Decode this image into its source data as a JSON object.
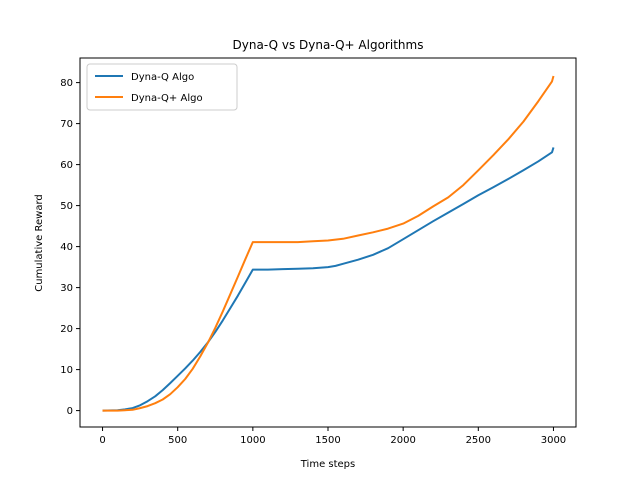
{
  "chart_data": {
    "type": "line",
    "title": "Dyna-Q vs Dyna-Q+ Algorithms",
    "xlabel": "Time steps",
    "ylabel": "Cumulative Reward",
    "xlim": [
      -150,
      3150
    ],
    "ylim": [
      -4,
      86
    ],
    "xticks": [
      0,
      500,
      1000,
      1500,
      2000,
      2500,
      3000
    ],
    "yticks": [
      0,
      10,
      20,
      30,
      40,
      50,
      60,
      70,
      80
    ],
    "grid": false,
    "legend": "top-left",
    "series": [
      {
        "name": "Dyna-Q Algo",
        "color": "#1f77b4",
        "points": [
          [
            0,
            0
          ],
          [
            100,
            0.1
          ],
          [
            150,
            0.3
          ],
          [
            200,
            0.6
          ],
          [
            250,
            1.3
          ],
          [
            300,
            2.3
          ],
          [
            350,
            3.5
          ],
          [
            400,
            5.0
          ],
          [
            450,
            6.7
          ],
          [
            500,
            8.5
          ],
          [
            550,
            10.3
          ],
          [
            600,
            12.2
          ],
          [
            650,
            14.3
          ],
          [
            700,
            16.6
          ],
          [
            750,
            19.2
          ],
          [
            800,
            22.0
          ],
          [
            850,
            25.0
          ],
          [
            900,
            28.0
          ],
          [
            950,
            31.2
          ],
          [
            1000,
            34.4
          ],
          [
            1100,
            34.4
          ],
          [
            1200,
            34.5
          ],
          [
            1300,
            34.6
          ],
          [
            1400,
            34.7
          ],
          [
            1500,
            35.0
          ],
          [
            1550,
            35.3
          ],
          [
            1600,
            35.8
          ],
          [
            1700,
            36.8
          ],
          [
            1800,
            38.0
          ],
          [
            1900,
            39.6
          ],
          [
            2000,
            41.8
          ],
          [
            2100,
            44.0
          ],
          [
            2200,
            46.2
          ],
          [
            2300,
            48.3
          ],
          [
            2400,
            50.4
          ],
          [
            2500,
            52.5
          ],
          [
            2600,
            54.5
          ],
          [
            2700,
            56.5
          ],
          [
            2800,
            58.6
          ],
          [
            2900,
            60.8
          ],
          [
            2990,
            63.0
          ],
          [
            3000,
            64.2
          ]
        ]
      },
      {
        "name": "Dyna-Q+ Algo",
        "color": "#ff7f0e",
        "points": [
          [
            0,
            0
          ],
          [
            100,
            0
          ],
          [
            150,
            0.1
          ],
          [
            200,
            0.2
          ],
          [
            250,
            0.6
          ],
          [
            300,
            1.1
          ],
          [
            350,
            1.8
          ],
          [
            400,
            2.7
          ],
          [
            450,
            4.0
          ],
          [
            500,
            5.7
          ],
          [
            550,
            7.7
          ],
          [
            600,
            10.2
          ],
          [
            650,
            13.2
          ],
          [
            700,
            16.5
          ],
          [
            750,
            20.2
          ],
          [
            800,
            24.2
          ],
          [
            850,
            28.4
          ],
          [
            900,
            32.6
          ],
          [
            950,
            36.9
          ],
          [
            1000,
            41.1
          ],
          [
            1100,
            41.1
          ],
          [
            1200,
            41.1
          ],
          [
            1300,
            41.1
          ],
          [
            1400,
            41.3
          ],
          [
            1500,
            41.5
          ],
          [
            1600,
            41.9
          ],
          [
            1700,
            42.7
          ],
          [
            1800,
            43.5
          ],
          [
            1900,
            44.4
          ],
          [
            2000,
            45.6
          ],
          [
            2100,
            47.5
          ],
          [
            2200,
            49.8
          ],
          [
            2300,
            52.0
          ],
          [
            2400,
            55.0
          ],
          [
            2500,
            58.6
          ],
          [
            2600,
            62.3
          ],
          [
            2700,
            66.2
          ],
          [
            2800,
            70.5
          ],
          [
            2900,
            75.5
          ],
          [
            2990,
            80.3
          ],
          [
            3000,
            81.6
          ]
        ]
      }
    ]
  }
}
